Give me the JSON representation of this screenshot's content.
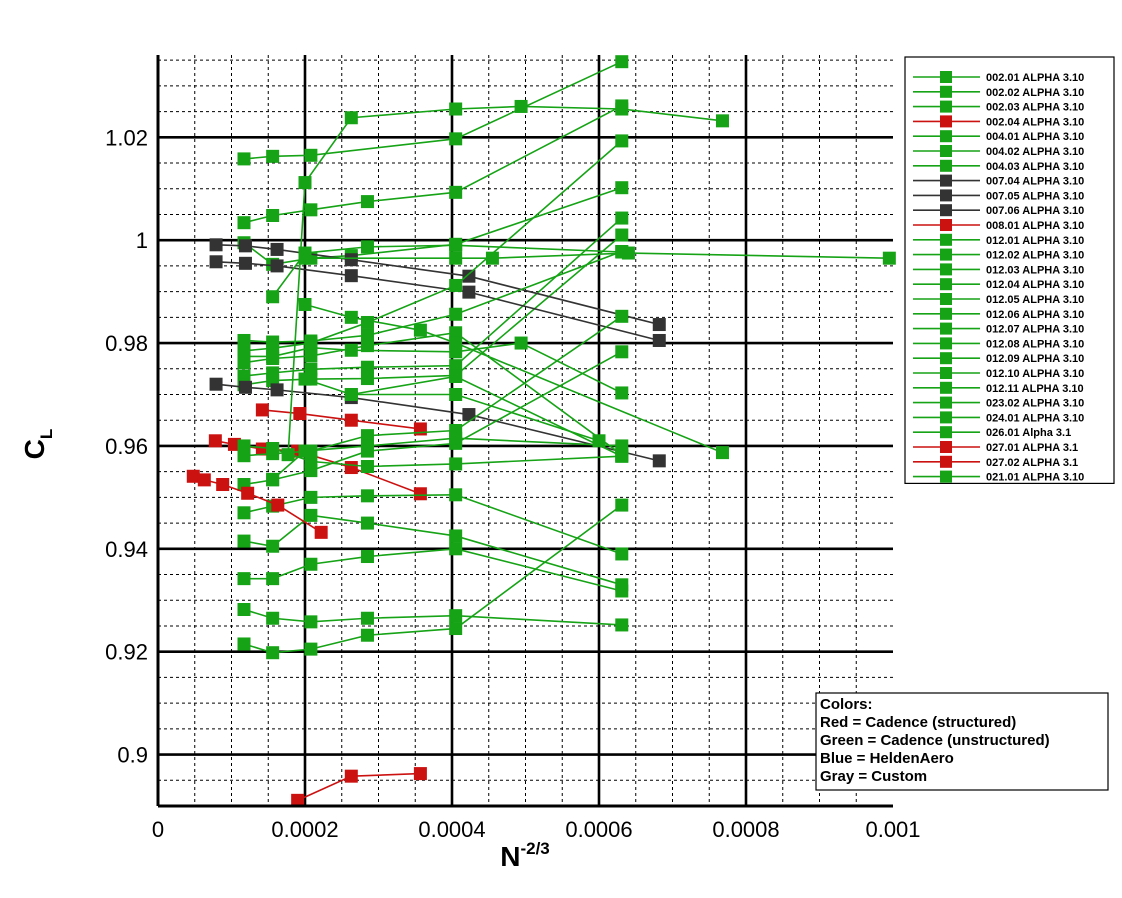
{
  "chart_data": {
    "type": "line",
    "xlabel": {
      "base": "N",
      "sup": "-2/3"
    },
    "ylabel": {
      "base": "C",
      "sub": "L"
    },
    "xlim": [
      0,
      0.001
    ],
    "ylim": [
      0.89,
      1.036
    ],
    "x_ticks": [
      {
        "value": 0,
        "label": "0"
      },
      {
        "value": 0.0002,
        "label": "0.0002"
      },
      {
        "value": 0.0004,
        "label": "0.0004"
      },
      {
        "value": 0.0006,
        "label": "0.0006"
      },
      {
        "value": 0.0008,
        "label": "0.0008"
      },
      {
        "value": 0.001,
        "label": "0.001"
      }
    ],
    "y_ticks": [
      {
        "value": 0.9,
        "label": "0.9"
      },
      {
        "value": 0.92,
        "label": "0.92"
      },
      {
        "value": 0.94,
        "label": "0.94"
      },
      {
        "value": 0.96,
        "label": "0.96"
      },
      {
        "value": 0.98,
        "label": "0.98"
      },
      {
        "value": 1,
        "label": "1"
      },
      {
        "value": 1.02,
        "label": "1.02"
      }
    ],
    "grid": true,
    "legend_position": "right",
    "colors": {
      "green": "#16a316",
      "red": "#cc1111",
      "gray": "#333333",
      "major_grid": "#000000",
      "minor_grid": "#000000"
    },
    "series": [
      {
        "name": "002.01 ALPHA 3.10",
        "color": "green",
        "points": [
          [
            0.000117,
            1.0158
          ],
          [
            0.000156,
            1.0163
          ],
          [
            0.000208,
            1.0165
          ],
          [
            0.000405,
            1.0197
          ],
          [
            0.000631,
            1.0347
          ]
        ]
      },
      {
        "name": "002.02 ALPHA 3.10",
        "color": "green",
        "points": [
          [
            0.000117,
            1.0034
          ],
          [
            0.000156,
            1.0048
          ],
          [
            0.000208,
            1.0059
          ],
          [
            0.000285,
            1.0075
          ],
          [
            0.000405,
            1.0093
          ],
          [
            0.000631,
            1.0261
          ]
        ]
      },
      {
        "name": "002.03 ALPHA 3.10",
        "color": "green",
        "points": [
          [
            0.000117,
            0.9995
          ],
          [
            0.000156,
            0.9953
          ],
          [
            0.000208,
            0.9965
          ],
          [
            0.000263,
            0.997
          ],
          [
            0.000405,
            0.9992
          ],
          [
            0.000631,
            1.0102
          ]
        ]
      },
      {
        "name": "002.04 ALPHA 3.10",
        "color": "red",
        "points": [
          [
            7.8e-05,
            0.961
          ],
          [
            0.000104,
            0.9603
          ],
          [
            0.000142,
            0.9594
          ],
          [
            0.00019,
            0.959
          ],
          [
            0.000263,
            0.9558
          ],
          [
            0.000357,
            0.9507
          ]
        ]
      },
      {
        "name": "004.01 ALPHA 3.10",
        "color": "green",
        "points": [
          [
            0.000117,
            0.9774
          ],
          [
            0.000156,
            0.9774
          ],
          [
            0.000208,
            0.9791
          ],
          [
            0.000263,
            0.9786
          ],
          [
            0.000405,
            0.9783
          ],
          [
            0.000494,
            0.98
          ],
          [
            0.000631,
            0.9703
          ]
        ]
      },
      {
        "name": "004.02 ALPHA 3.10",
        "color": "green",
        "points": [
          [
            0.000117,
            0.9736
          ],
          [
            0.000156,
            0.9742
          ],
          [
            0.000208,
            0.9749
          ],
          [
            0.000285,
            0.9753
          ],
          [
            0.000405,
            0.9756
          ],
          [
            0.000631,
            1.0043
          ]
        ]
      },
      {
        "name": "004.03 ALPHA 3.10",
        "color": "green",
        "points": [
          [
            0.000117,
            0.9719
          ],
          [
            0.000156,
            0.9727
          ],
          [
            0.000208,
            0.973
          ],
          [
            0.000285,
            0.9731
          ],
          [
            0.000405,
            0.9737
          ],
          [
            0.000631,
            1.001
          ]
        ]
      },
      {
        "name": "007.04 ALPHA 3.10",
        "color": "gray",
        "points": [
          [
            7.9e-05,
            0.9991
          ],
          [
            0.000119,
            0.9989
          ],
          [
            0.000162,
            0.9982
          ],
          [
            0.000263,
            0.9962
          ],
          [
            0.000423,
            0.993
          ],
          [
            0.000682,
            0.9836
          ]
        ]
      },
      {
        "name": "007.05 ALPHA 3.10",
        "color": "gray",
        "points": [
          [
            7.9e-05,
            0.9958
          ],
          [
            0.000119,
            0.9955
          ],
          [
            0.000162,
            0.995
          ],
          [
            0.000263,
            0.9931
          ],
          [
            0.000423,
            0.9899
          ],
          [
            0.000682,
            0.9805
          ]
        ]
      },
      {
        "name": "007.06 ALPHA 3.10",
        "color": "gray",
        "points": [
          [
            7.9e-05,
            0.972
          ],
          [
            0.000119,
            0.9714
          ],
          [
            0.000162,
            0.9709
          ],
          [
            0.000263,
            0.9694
          ],
          [
            0.000423,
            0.9661
          ],
          [
            0.000682,
            0.9571
          ]
        ]
      },
      {
        "name": "008.01 ALPHA 3.10",
        "color": "red",
        "points": [
          [
            0.000142,
            0.967
          ],
          [
            0.000193,
            0.9663
          ],
          [
            0.000263,
            0.965
          ],
          [
            0.000357,
            0.9633
          ]
        ]
      },
      {
        "name": "012.01 ALPHA 3.10",
        "color": "green",
        "points": [
          [
            0.000117,
            0.9805
          ],
          [
            0.000156,
            0.9802
          ],
          [
            0.000208,
            0.9804
          ],
          [
            0.000285,
            0.9815
          ],
          [
            0.000405,
            0.9856
          ],
          [
            0.000631,
            0.9978
          ]
        ]
      },
      {
        "name": "012.02 ALPHA 3.10",
        "color": "green",
        "points": [
          [
            0.000117,
            0.9785
          ],
          [
            0.000156,
            0.979
          ],
          [
            0.000208,
            0.98
          ],
          [
            0.000285,
            0.984
          ],
          [
            0.000405,
            0.9912
          ],
          [
            0.000631,
            1.0193
          ]
        ]
      },
      {
        "name": "012.03 ALPHA 3.10",
        "color": "green",
        "points": [
          [
            0.000117,
            0.9762
          ],
          [
            0.000156,
            0.977
          ],
          [
            0.000208,
            0.9775
          ],
          [
            0.000285,
            0.9795
          ],
          [
            0.000405,
            0.982
          ],
          [
            0.000631,
            0.9583
          ]
        ]
      },
      {
        "name": "012.04 ALPHA 3.10",
        "color": "green",
        "points": [
          [
            0.000117,
            0.9581
          ],
          [
            0.000156,
            0.9585
          ],
          [
            0.000208,
            0.959
          ],
          [
            0.000285,
            0.962
          ],
          [
            0.000405,
            0.963
          ],
          [
            0.000631,
            0.9852
          ]
        ]
      },
      {
        "name": "012.05 ALPHA 3.10",
        "color": "green",
        "points": [
          [
            0.000117,
            0.9525
          ],
          [
            0.000156,
            0.9534
          ],
          [
            0.000208,
            0.9552
          ],
          [
            0.000285,
            0.959
          ],
          [
            0.000405,
            0.9605
          ],
          [
            0.000631,
            0.9783
          ]
        ]
      },
      {
        "name": "012.06 ALPHA 3.10",
        "color": "green",
        "points": [
          [
            0.000117,
            0.947
          ],
          [
            0.000156,
            0.9483
          ],
          [
            0.000208,
            0.95
          ],
          [
            0.000285,
            0.9503
          ],
          [
            0.000405,
            0.9505
          ],
          [
            0.000631,
            0.939
          ]
        ]
      },
      {
        "name": "012.07 ALPHA 3.10",
        "color": "green",
        "points": [
          [
            0.000117,
            0.9415
          ],
          [
            0.000156,
            0.9405
          ],
          [
            0.000208,
            0.9465
          ],
          [
            0.000285,
            0.945
          ],
          [
            0.000405,
            0.9425
          ],
          [
            0.000631,
            0.933
          ]
        ]
      },
      {
        "name": "012.08 ALPHA 3.10",
        "color": "green",
        "points": [
          [
            0.000117,
            0.9342
          ],
          [
            0.000156,
            0.9342
          ],
          [
            0.000208,
            0.937
          ],
          [
            0.000285,
            0.9385
          ],
          [
            0.000405,
            0.94
          ],
          [
            0.000631,
            0.9318
          ]
        ]
      },
      {
        "name": "012.09 ALPHA 3.10",
        "color": "green",
        "points": [
          [
            0.000117,
            0.9282
          ],
          [
            0.000156,
            0.9265
          ],
          [
            0.000208,
            0.9258
          ],
          [
            0.000285,
            0.9265
          ],
          [
            0.000405,
            0.927
          ],
          [
            0.000631,
            0.9252
          ]
        ]
      },
      {
        "name": "012.10 ALPHA 3.10",
        "color": "green",
        "points": [
          [
            0.000117,
            0.9215
          ],
          [
            0.000156,
            0.9198
          ],
          [
            0.000208,
            0.9205
          ],
          [
            0.000285,
            0.9232
          ],
          [
            0.000405,
            0.9245
          ],
          [
            0.000631,
            0.9485
          ]
        ]
      },
      {
        "name": "012.11 ALPHA 3.10",
        "color": "green",
        "points": [
          [
            0.000117,
            0.96
          ],
          [
            0.000156,
            0.9595
          ],
          [
            0.000208,
            0.957
          ],
          [
            0.000285,
            0.956
          ],
          [
            0.000405,
            0.9565
          ],
          [
            0.000631,
            0.958
          ]
        ]
      },
      {
        "name": "023.02 ALPHA 3.10",
        "color": "green",
        "points": [
          [
            0.000156,
            0.989
          ],
          [
            0.0002,
            0.9975
          ],
          [
            0.000285,
            0.9987
          ],
          [
            0.000405,
            0.999
          ],
          [
            0.000631,
            0.9977
          ]
        ]
      },
      {
        "name": "024.01 ALPHA 3.10",
        "color": "green",
        "points": [
          [
            0.000156,
            0.9535
          ],
          [
            0.0002,
            0.959
          ],
          [
            0.000285,
            0.96
          ],
          [
            0.000405,
            0.9615
          ],
          [
            0.000631,
            0.96
          ]
        ]
      },
      {
        "name": "026.01 Alpha 3.1",
        "color": "green",
        "points": [
          [
            0.0002,
            0.9875
          ],
          [
            0.000263,
            0.985
          ],
          [
            0.000357,
            0.9825
          ],
          [
            0.000405,
            0.98
          ],
          [
            0.000768,
            0.9587
          ]
        ]
      },
      {
        "name": "027.01 ALPHA 3.1",
        "color": "red",
        "points": [
          [
            4.8e-05,
            0.9541
          ],
          [
            6.3e-05,
            0.9534
          ],
          [
            8.8e-05,
            0.9525
          ],
          [
            0.000122,
            0.9508
          ],
          [
            0.000163,
            0.9485
          ],
          [
            0.000222,
            0.9432
          ]
        ]
      },
      {
        "name": "027.02 ALPHA 3.1",
        "color": "red",
        "points": [
          [
            0.00019,
            0.8911
          ],
          [
            0.000263,
            0.8958
          ],
          [
            0.000357,
            0.8963
          ]
        ]
      },
      {
        "name": "021.01 ALPHA 3.10",
        "color": "green",
        "points": [
          [
            0.000177,
            0.9583
          ],
          [
            0.0002,
            1.0112
          ],
          [
            0.000263,
            1.0238
          ],
          [
            0.000405,
            1.0255
          ],
          [
            0.000494,
            1.026
          ],
          [
            0.000631,
            1.0255
          ],
          [
            0.000768,
            1.0232
          ]
        ]
      },
      {
        "name": "",
        "color": "green",
        "points": [
          [
            0.0002,
            0.9965
          ],
          [
            0.000405,
            0.9965
          ],
          [
            0.000455,
            0.9965
          ],
          [
            0.00064,
            0.9975
          ],
          [
            0.000995,
            0.9965
          ]
        ]
      },
      {
        "name": "",
        "color": "green",
        "points": [
          [
            0.000263,
            0.97
          ],
          [
            0.000405,
            0.9735
          ],
          [
            0.000631,
            0.958
          ]
        ]
      },
      {
        "name": "",
        "color": "green",
        "points": [
          [
            0.0002,
            0.973
          ],
          [
            0.000263,
            0.97
          ],
          [
            0.000405,
            0.97
          ],
          [
            0.0006,
            0.961
          ]
        ]
      }
    ]
  },
  "note": {
    "lines": [
      "Colors:",
      "Red = Cadence (structured)",
      "Green = Cadence (unstructured)",
      "Blue = HeldenAero",
      "Gray = Custom"
    ]
  }
}
